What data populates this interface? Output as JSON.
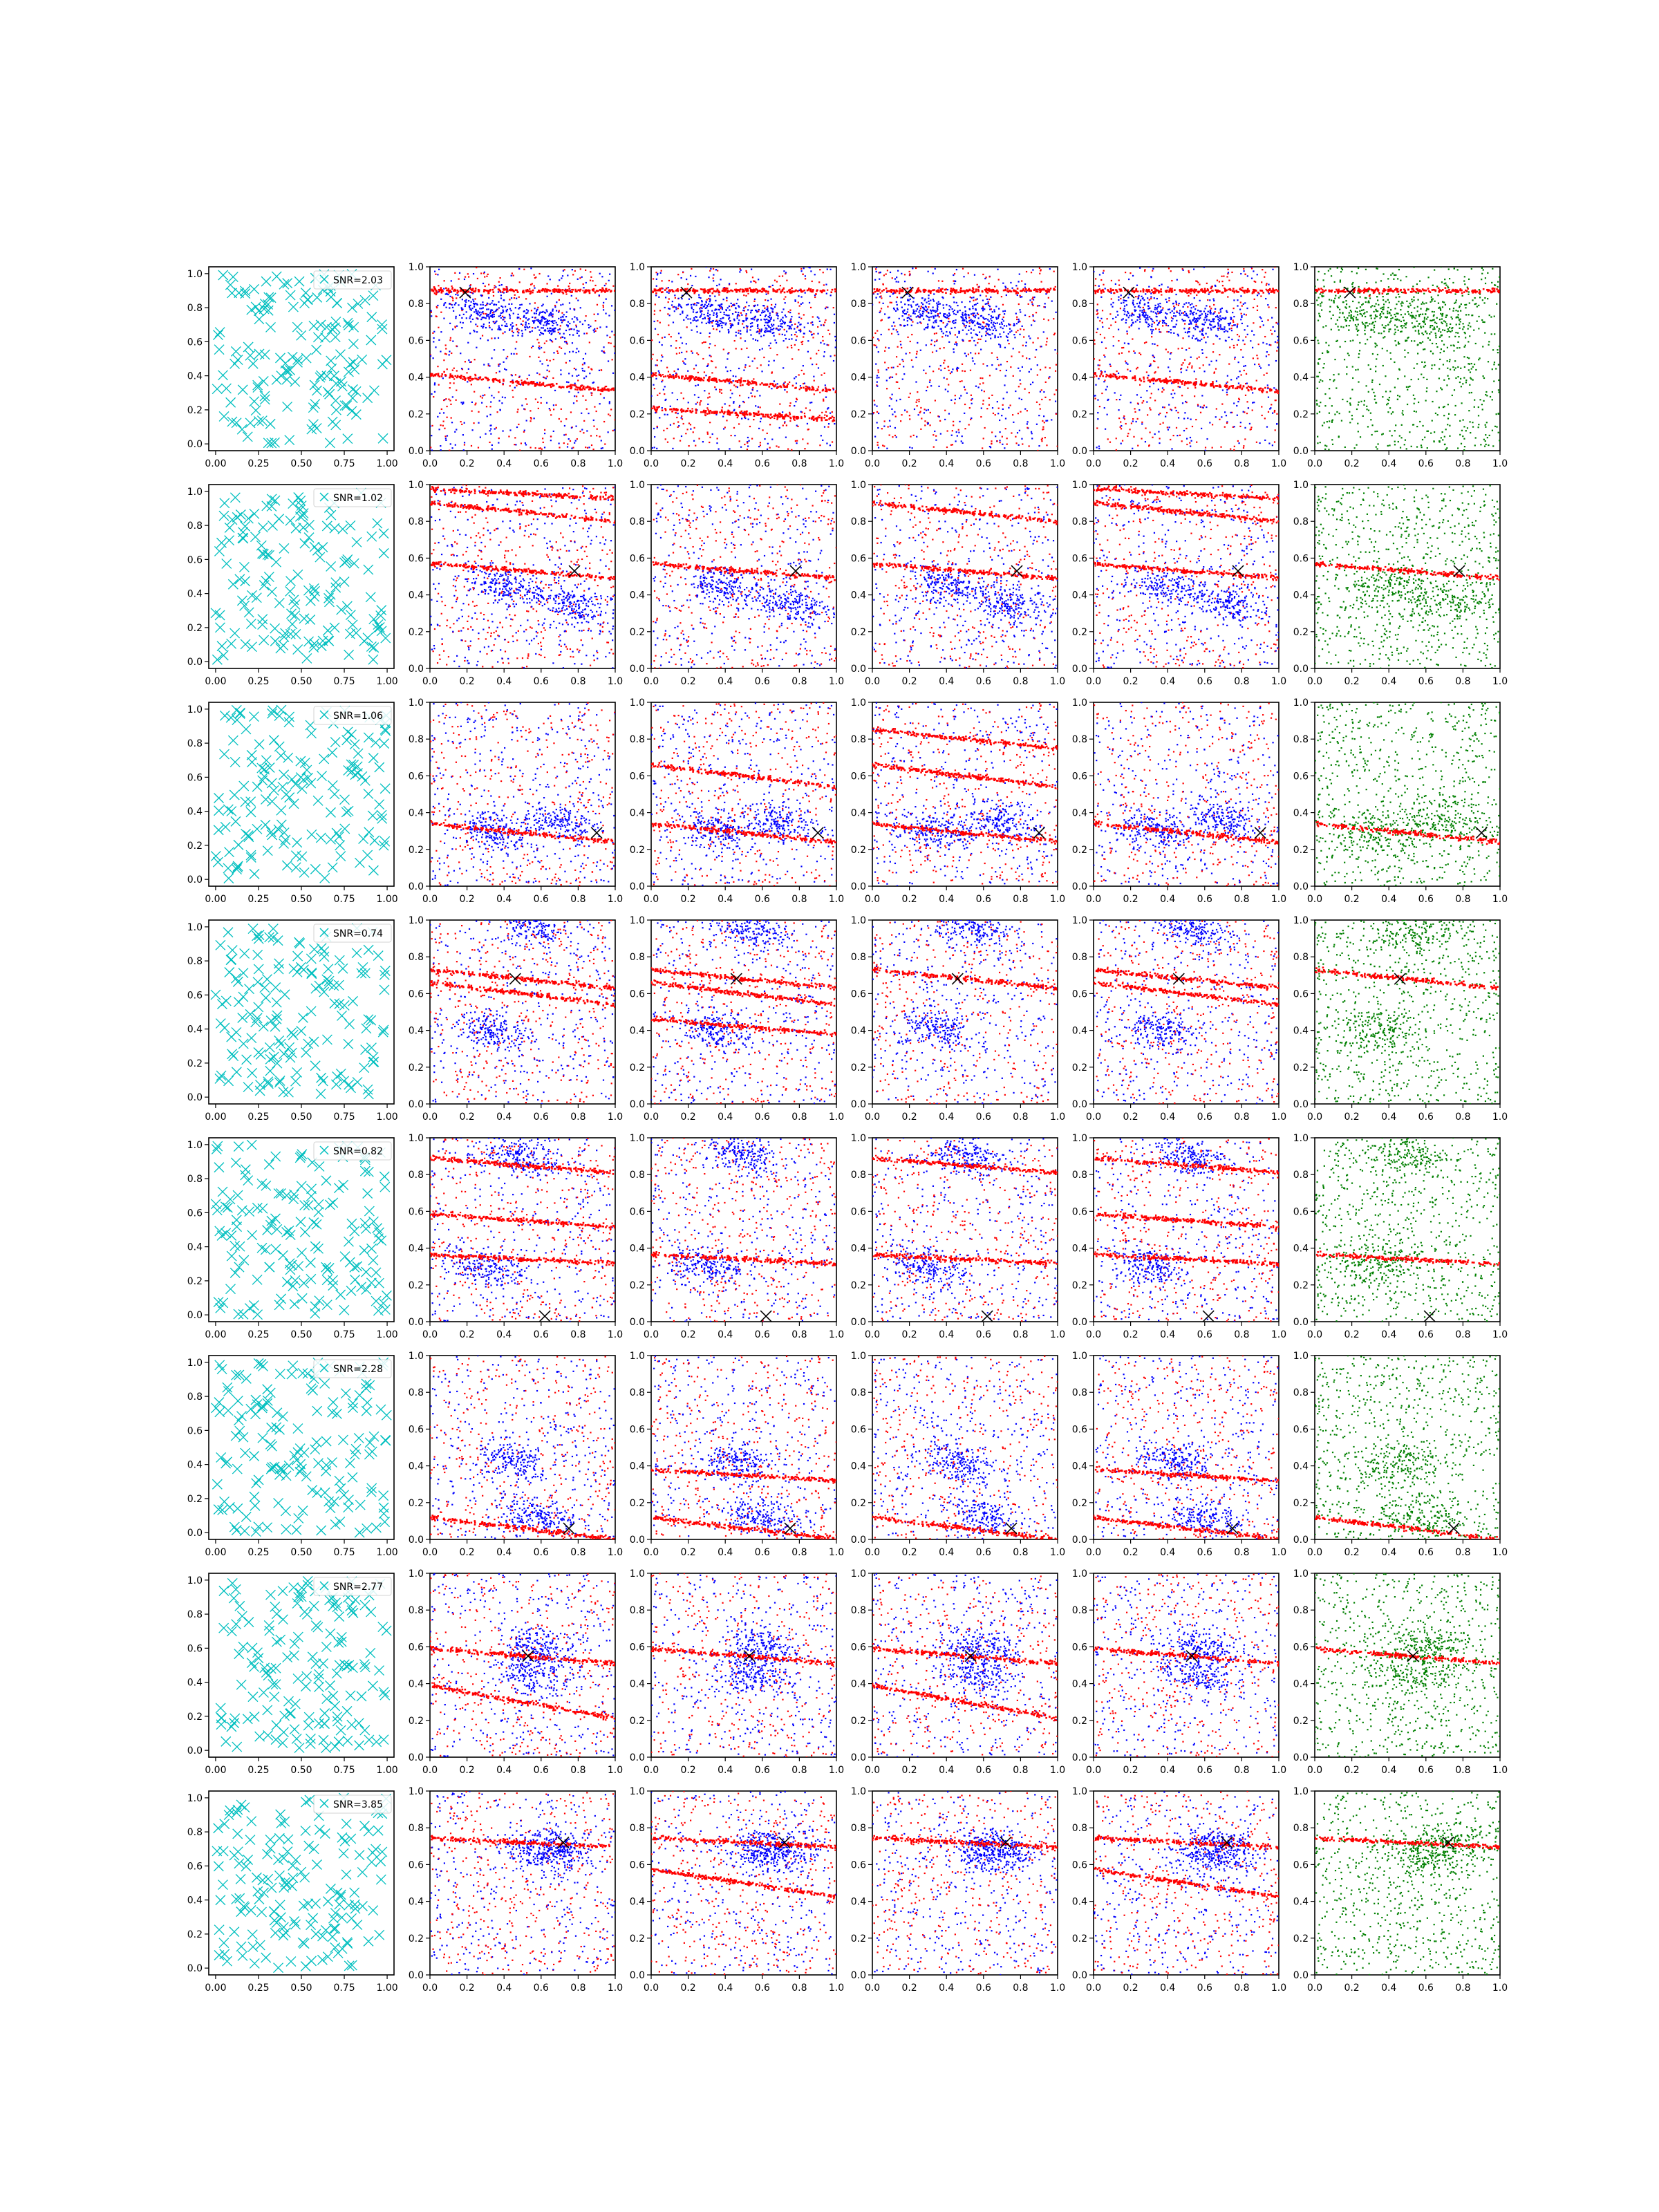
{
  "chart_data": {
    "type": "scatter",
    "layout": {
      "rows": 8,
      "cols": 6
    },
    "colors": {
      "first_col": "#00bfbf",
      "red": "#ff0000",
      "blue": "#0000ff",
      "green": "#008000",
      "marker": "#000000"
    },
    "first_col_axis": {
      "xlim": [
        -0.04,
        1.04
      ],
      "ylim": [
        -0.04,
        1.04
      ],
      "xticks": [
        "0.00",
        "0.25",
        "0.50",
        "0.75",
        "1.00"
      ],
      "xtick_values": [
        0,
        0.25,
        0.5,
        0.75,
        1.0
      ],
      "yticks": [
        "0.0",
        "0.2",
        "0.4",
        "0.6",
        "0.8",
        "1.0"
      ],
      "ytick_values": [
        0,
        0.2,
        0.4,
        0.6,
        0.8,
        1.0
      ]
    },
    "other_axis": {
      "xlim": [
        0,
        1
      ],
      "ylim": [
        0,
        1
      ],
      "xticks": [
        "0.0",
        "0.2",
        "0.4",
        "0.6",
        "0.8",
        "1.0"
      ],
      "yticks": [
        "0.0",
        "0.2",
        "0.4",
        "0.6",
        "0.8",
        "1.0"
      ],
      "tick_values": [
        0,
        0.2,
        0.4,
        0.6,
        0.8,
        1.0
      ]
    },
    "panel_kinds": [
      "markers",
      "red-blue",
      "red-blue",
      "red-blue",
      "red-blue",
      "green"
    ],
    "rows": [
      {
        "snr_label": "SNR=2.03",
        "target": [
          0.19,
          0.86
        ],
        "red_streaks": [
          [
            0.87,
            0.0,
            0.07
          ],
          [
            0.37,
            0.09,
            0.06
          ],
          [
            0.2,
            0.06,
            0.05
          ]
        ],
        "blue_clusters": [
          [
            0.62,
            0.7
          ],
          [
            0.3,
            0.75
          ]
        ]
      },
      {
        "snr_label": "SNR=1.02",
        "target": [
          0.78,
          0.53
        ],
        "red_streaks": [
          [
            0.53,
            0.08,
            0.06
          ],
          [
            0.85,
            0.1,
            0.06
          ],
          [
            0.95,
            0.05,
            0.05
          ]
        ],
        "blue_clusters": [
          [
            0.4,
            0.45
          ],
          [
            0.75,
            0.35
          ]
        ]
      },
      {
        "snr_label": "SNR=1.06",
        "target": [
          0.9,
          0.29
        ],
        "red_streaks": [
          [
            0.29,
            0.1,
            0.07
          ],
          [
            0.6,
            0.12,
            0.08
          ],
          [
            0.8,
            0.1,
            0.07
          ]
        ],
        "blue_clusters": [
          [
            0.35,
            0.3
          ],
          [
            0.7,
            0.35
          ]
        ]
      },
      {
        "snr_label": "SNR=0.74",
        "target": [
          0.46,
          0.68
        ],
        "red_streaks": [
          [
            0.68,
            0.1,
            0.07
          ],
          [
            0.6,
            0.12,
            0.07
          ],
          [
            0.42,
            0.08,
            0.05
          ]
        ],
        "blue_clusters": [
          [
            0.55,
            0.95
          ],
          [
            0.35,
            0.4
          ]
        ]
      },
      {
        "snr_label": "SNR=0.82",
        "target": [
          0.62,
          0.03
        ],
        "red_streaks": [
          [
            0.34,
            0.05,
            0.08
          ],
          [
            0.85,
            0.08,
            0.06
          ],
          [
            0.55,
            0.07,
            0.05
          ]
        ],
        "blue_clusters": [
          [
            0.3,
            0.3
          ],
          [
            0.5,
            0.9
          ]
        ]
      },
      {
        "snr_label": "SNR=2.28",
        "target": [
          0.75,
          0.06
        ],
        "red_streaks": [
          [
            0.06,
            0.12,
            0.08
          ],
          [
            0.35,
            0.06,
            0.04
          ]
        ],
        "blue_clusters": [
          [
            0.6,
            0.12
          ],
          [
            0.45,
            0.42
          ]
        ]
      },
      {
        "snr_label": "SNR=2.77",
        "target": [
          0.53,
          0.55
        ],
        "red_streaks": [
          [
            0.55,
            0.08,
            0.05
          ],
          [
            0.3,
            0.18,
            0.05
          ]
        ],
        "blue_clusters": [
          [
            0.55,
            0.45
          ],
          [
            0.6,
            0.6
          ]
        ]
      },
      {
        "snr_label": "SNR=3.85",
        "target": [
          0.72,
          0.72
        ],
        "red_streaks": [
          [
            0.72,
            0.05,
            0.04
          ],
          [
            0.5,
            0.15,
            0.05
          ]
        ],
        "blue_clusters": [
          [
            0.7,
            0.7
          ],
          [
            0.6,
            0.65
          ]
        ]
      }
    ]
  }
}
